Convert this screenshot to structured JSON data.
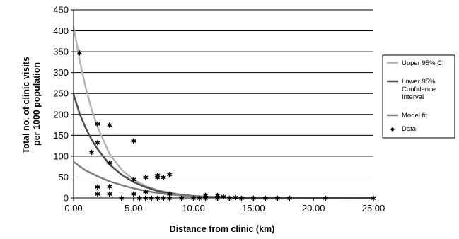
{
  "chart_data": {
    "type": "line",
    "xlabel": "Distance from clinic (km)",
    "ylabel_lines": [
      "Total no. of clinic visits",
      "per 1000 population"
    ],
    "xlim": [
      0,
      25
    ],
    "ylim": [
      0,
      450
    ],
    "x_ticks": [
      0,
      5,
      10,
      15,
      20,
      25
    ],
    "x_tick_labels": [
      "0.00",
      "5.00",
      "10.00",
      "15.00",
      "20.00",
      "25.00"
    ],
    "y_ticks": [
      0,
      50,
      100,
      150,
      200,
      250,
      300,
      350,
      400,
      450
    ],
    "y_tick_labels": [
      "0",
      "50",
      "100",
      "150",
      "200",
      "250",
      "300",
      "350",
      "400",
      "450"
    ],
    "grid": "horizontal",
    "legend_position": "right",
    "colors": {
      "upper": "#b4b4b4",
      "lower": "#4d4d4d",
      "model": "#7f7f7f",
      "data": "#000000",
      "grid": "#000000",
      "legend_border": "#000000"
    },
    "series": [
      {
        "key": "upper",
        "name": "Upper 95% CI",
        "kind": "line",
        "points": [
          [
            0,
            410
          ],
          [
            0.5,
            330
          ],
          [
            1,
            265
          ],
          [
            1.5,
            212
          ],
          [
            2,
            170
          ],
          [
            3,
            105
          ],
          [
            4,
            68
          ],
          [
            5,
            44
          ],
          [
            6,
            29
          ],
          [
            7,
            19
          ],
          [
            8,
            13
          ],
          [
            9,
            8
          ],
          [
            10,
            5
          ],
          [
            11,
            3
          ],
          [
            12,
            2
          ],
          [
            13,
            1.5
          ],
          [
            14,
            1
          ],
          [
            15,
            0.5
          ],
          [
            17,
            0.3
          ],
          [
            20,
            0.1
          ],
          [
            25,
            0
          ]
        ]
      },
      {
        "key": "lower",
        "name": "Lower 95% Confidence Interval",
        "legend_lines": [
          "Lower 95%",
          "Confidence",
          "Interval"
        ],
        "kind": "line",
        "points": [
          [
            0,
            248
          ],
          [
            0.5,
            202
          ],
          [
            1,
            168
          ],
          [
            1.5,
            140
          ],
          [
            2,
            117
          ],
          [
            3,
            80
          ],
          [
            4,
            56
          ],
          [
            5,
            38
          ],
          [
            6,
            26
          ],
          [
            7,
            17
          ],
          [
            8,
            11
          ],
          [
            9,
            7
          ],
          [
            10,
            4.5
          ],
          [
            11,
            3
          ],
          [
            12,
            2
          ],
          [
            13,
            1
          ],
          [
            15,
            0.5
          ],
          [
            20,
            0.1
          ],
          [
            25,
            0
          ]
        ]
      },
      {
        "key": "model",
        "name": "Model fit",
        "kind": "line",
        "points": [
          [
            0,
            87
          ],
          [
            0.5,
            76
          ],
          [
            1,
            66
          ],
          [
            2,
            52
          ],
          [
            3,
            40
          ],
          [
            4,
            31
          ],
          [
            5,
            23
          ],
          [
            6,
            17
          ],
          [
            7,
            12
          ],
          [
            8,
            8.5
          ],
          [
            9,
            6
          ],
          [
            10,
            4
          ],
          [
            11,
            2.7
          ],
          [
            12,
            1.8
          ],
          [
            13,
            1.2
          ],
          [
            15,
            0.6
          ],
          [
            20,
            0.1
          ],
          [
            25,
            0
          ]
        ]
      },
      {
        "key": "data",
        "name": "Data",
        "kind": "scatter",
        "points": [
          [
            0.5,
            348
          ],
          [
            1.5,
            110
          ],
          [
            2,
            178
          ],
          [
            2,
            133
          ],
          [
            2,
            27
          ],
          [
            2,
            10
          ],
          [
            3,
            175
          ],
          [
            3,
            85
          ],
          [
            3,
            28
          ],
          [
            3,
            10
          ],
          [
            4,
            0
          ],
          [
            5,
            137
          ],
          [
            5,
            45
          ],
          [
            5,
            10
          ],
          [
            5.5,
            0
          ],
          [
            6,
            50
          ],
          [
            6,
            15
          ],
          [
            6,
            0
          ],
          [
            6.5,
            0
          ],
          [
            7,
            55
          ],
          [
            7,
            50
          ],
          [
            7,
            0
          ],
          [
            7.5,
            50
          ],
          [
            7.5,
            0
          ],
          [
            8,
            57
          ],
          [
            8,
            10
          ],
          [
            8,
            0
          ],
          [
            9,
            0
          ],
          [
            10,
            0
          ],
          [
            10.5,
            0
          ],
          [
            11,
            7
          ],
          [
            11,
            0
          ],
          [
            12,
            7
          ],
          [
            12,
            0
          ],
          [
            12.5,
            3
          ],
          [
            13,
            0
          ],
          [
            13.5,
            2
          ],
          [
            14,
            0
          ],
          [
            15,
            0
          ],
          [
            16,
            0
          ],
          [
            17,
            0
          ],
          [
            18,
            0
          ],
          [
            21,
            0
          ],
          [
            25,
            0
          ]
        ]
      }
    ]
  }
}
